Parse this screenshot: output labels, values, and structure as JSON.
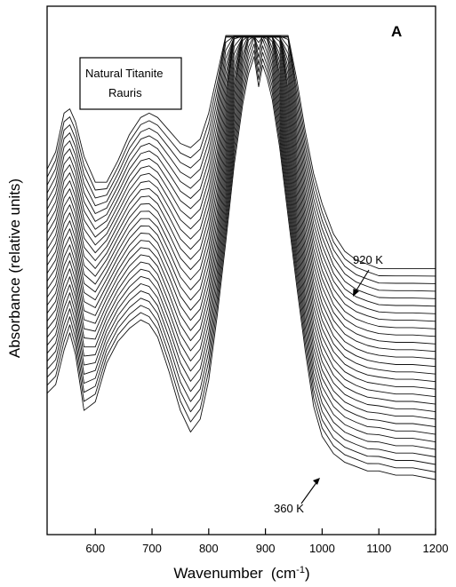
{
  "chart_data": {
    "type": "line",
    "panel_label": "A",
    "legend_box": [
      "Natural Titanite",
      "Rauris"
    ],
    "xlabel": "Wavenumber",
    "xlabel_unit": "(cm",
    "xlabel_unit_sup": "-1",
    "xlabel_unit_close": ")",
    "ylabel": "Absorbance (relative units)",
    "xlim": [
      515,
      1200
    ],
    "ylim": [
      0,
      1
    ],
    "xticks": [
      600,
      700,
      800,
      900,
      1000,
      1100,
      1200
    ],
    "xtick_labels": [
      "600",
      "700",
      "800",
      "900",
      "1000",
      "1100",
      "1200"
    ],
    "yticks_shown": false,
    "grid": false,
    "annotations": [
      {
        "text": "920 K",
        "points_to_series": "920 K",
        "at_x": 1055
      },
      {
        "text": "360 K",
        "points_to_series": "360 K",
        "at_x": 1000
      }
    ],
    "series_note": "29 stacked absorbance spectra; temperatures between the labelled 360 K (bottom) and 920 K (top) are not printed",
    "series_first_label": "360 K",
    "series_last_label": "920 K",
    "series_count": 29,
    "spectrum_shape": {
      "x": [
        515,
        530,
        545,
        555,
        565,
        580,
        600,
        620,
        640,
        660,
        680,
        695,
        710,
        730,
        750,
        768,
        785,
        800,
        815,
        830,
        845,
        860,
        870,
        880,
        888,
        895,
        903,
        912,
        925,
        940,
        955,
        970,
        985,
        1000,
        1020,
        1040,
        1060,
        1080,
        1100,
        1130,
        1160,
        1200
      ],
      "low_T_360K": [
        0.2,
        0.22,
        0.3,
        0.34,
        0.29,
        0.16,
        0.18,
        0.27,
        0.32,
        0.35,
        0.37,
        0.36,
        0.33,
        0.25,
        0.16,
        0.11,
        0.14,
        0.23,
        0.38,
        0.55,
        0.73,
        0.87,
        0.94,
        0.98,
        0.91,
        0.96,
        0.93,
        0.88,
        0.77,
        0.61,
        0.45,
        0.3,
        0.17,
        0.1,
        0.06,
        0.04,
        0.03,
        0.02,
        0.02,
        0.01,
        0.01,
        0.0
      ],
      "high_T_920K": [
        0.33,
        0.37,
        0.46,
        0.47,
        0.44,
        0.36,
        0.3,
        0.3,
        0.35,
        0.41,
        0.45,
        0.46,
        0.45,
        0.42,
        0.39,
        0.38,
        0.4,
        0.46,
        0.55,
        0.68,
        0.82,
        0.94,
        0.99,
        1.0,
        1.0,
        0.99,
        0.96,
        0.91,
        0.81,
        0.68,
        0.54,
        0.42,
        0.32,
        0.25,
        0.18,
        0.14,
        0.12,
        0.11,
        0.1,
        0.1,
        0.1,
        0.1
      ]
    }
  }
}
